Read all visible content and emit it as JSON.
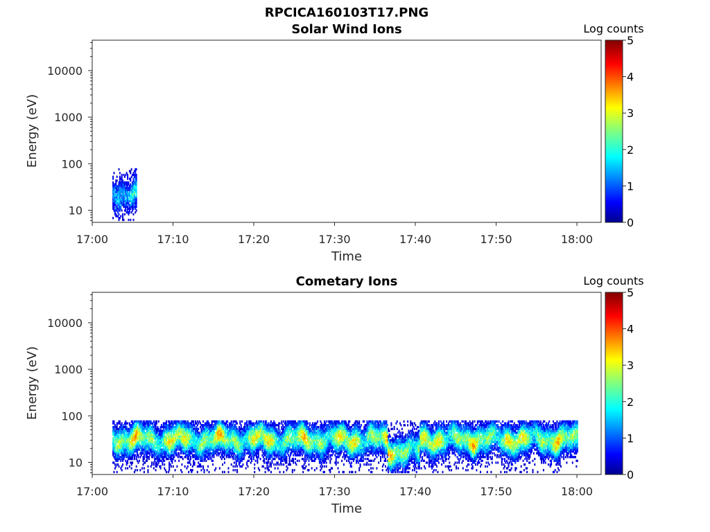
{
  "figure_title": "RPCICA160103T17.PNG",
  "chart_data": [
    {
      "type": "heatmap",
      "title": "Solar Wind Ions",
      "xlabel": "Time",
      "ylabel": "Energy (eV)",
      "x_ticks": [
        "17:00",
        "17:10",
        "17:20",
        "17:30",
        "17:40",
        "17:50",
        "18:00"
      ],
      "y_ticks": [
        "10",
        "100",
        "1000",
        "10000"
      ],
      "y_scale": "log",
      "xlim": [
        "17:00",
        "18:03"
      ],
      "ylim": [
        5.5,
        45000
      ],
      "colorbar": {
        "label": "Log counts",
        "ticks": [
          "0",
          "1",
          "2",
          "3",
          "4",
          "5"
        ],
        "range": [
          0,
          5
        ],
        "colormap": "jet"
      },
      "data_extent": {
        "time_start": "17:02.5",
        "time_end": "17:05.5",
        "energy_min_eV": 6,
        "energy_max_eV": 80,
        "peak_energy_eV": 22,
        "peak_log_counts": 2.0
      }
    },
    {
      "type": "heatmap",
      "title": "Cometary Ions",
      "xlabel": "Time",
      "ylabel": "Energy (eV)",
      "x_ticks": [
        "17:00",
        "17:10",
        "17:20",
        "17:30",
        "17:40",
        "17:50",
        "18:00"
      ],
      "y_ticks": [
        "10",
        "100",
        "1000",
        "10000"
      ],
      "y_scale": "log",
      "xlim": [
        "17:00",
        "18:03"
      ],
      "ylim": [
        5.5,
        45000
      ],
      "colorbar": {
        "label": "Log counts",
        "ticks": [
          "0",
          "1",
          "2",
          "3",
          "4",
          "5"
        ],
        "range": [
          0,
          5
        ],
        "colormap": "jet"
      },
      "data_extent": {
        "time_start": "17:02.5",
        "time_end": "18:00",
        "energy_min_eV": 6,
        "energy_max_eV": 80,
        "peak_energy_eV": 30,
        "peak_log_counts": 3.5
      }
    }
  ]
}
